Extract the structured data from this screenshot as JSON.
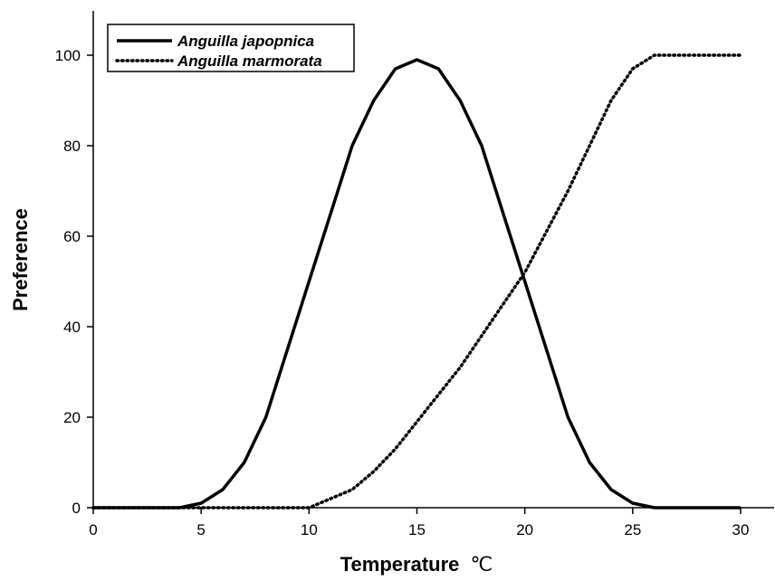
{
  "chart_data": {
    "type": "line",
    "xlabel": "Temperature",
    "xlabel_unit": "℃",
    "ylabel": "Preference",
    "xlim": [
      0,
      30
    ],
    "ylim": [
      0,
      110
    ],
    "xticks": [
      "0",
      "5",
      "10",
      "15",
      "20",
      "25",
      "30"
    ],
    "yticks": [
      "0",
      "20",
      "40",
      "60",
      "80",
      "100"
    ],
    "grid": false,
    "legend_position": "top-left",
    "series": [
      {
        "name": "Anguilla japopnica",
        "style": "solid",
        "color": "#000000",
        "x": [
          0,
          1,
          2,
          3,
          4,
          5,
          6,
          7,
          8,
          9,
          10,
          11,
          12,
          13,
          14,
          15,
          16,
          17,
          18,
          19,
          20,
          21,
          22,
          23,
          24,
          25,
          26,
          27,
          28,
          29,
          30
        ],
        "y": [
          0,
          0,
          0,
          0,
          0,
          1,
          4,
          10,
          20,
          35,
          50,
          65,
          80,
          90,
          97,
          99,
          97,
          90,
          80,
          65,
          50,
          35,
          20,
          10,
          4,
          1,
          0,
          0,
          0,
          0,
          0
        ]
      },
      {
        "name": "Anguilla marmorata",
        "style": "dotted",
        "color": "#000000",
        "x": [
          0,
          1,
          2,
          3,
          4,
          5,
          6,
          7,
          8,
          9,
          10,
          11,
          12,
          13,
          14,
          15,
          16,
          17,
          18,
          19,
          20,
          21,
          22,
          23,
          24,
          25,
          26,
          27,
          28,
          29,
          30
        ],
        "y": [
          0,
          0,
          0,
          0,
          0,
          0,
          0,
          0,
          0,
          0,
          0,
          2,
          4,
          8,
          13,
          19,
          25,
          31,
          38,
          45,
          52,
          61,
          70,
          80,
          90,
          97,
          100,
          100,
          100,
          100,
          100
        ]
      }
    ]
  }
}
